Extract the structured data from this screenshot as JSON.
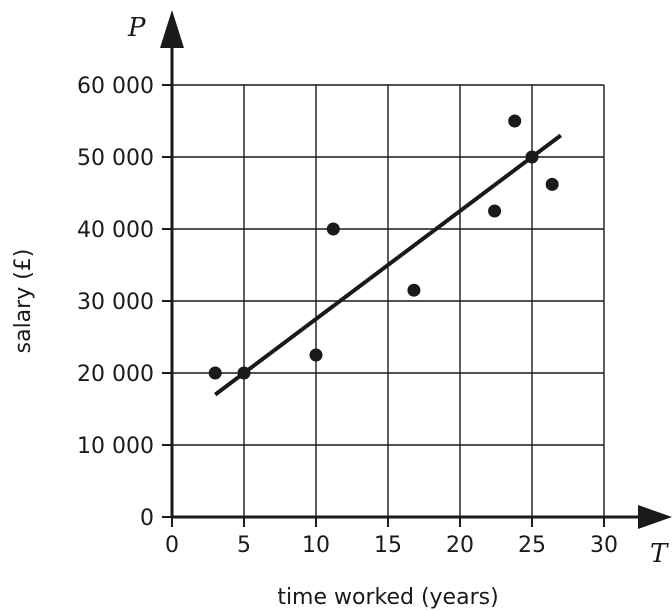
{
  "chart_data": {
    "type": "scatter",
    "title": "",
    "xlabel": "time worked (years)",
    "ylabel": "salary (£)",
    "x_axis_variable": "T",
    "y_axis_variable": "P",
    "xlim": [
      0,
      30
    ],
    "ylim": [
      0,
      60000
    ],
    "x_ticks": [
      0,
      5,
      10,
      15,
      20,
      25,
      30
    ],
    "y_ticks": [
      0,
      10000,
      20000,
      30000,
      40000,
      50000,
      60000
    ],
    "x_tick_labels": [
      "0",
      "5",
      "10",
      "15",
      "20",
      "25",
      "30"
    ],
    "y_tick_labels": [
      "0",
      "10 000",
      "20 000",
      "30 000",
      "40 000",
      "50 000",
      "60 000"
    ],
    "grid": true,
    "points": [
      {
        "x": 3,
        "y": 20000
      },
      {
        "x": 5,
        "y": 20000
      },
      {
        "x": 10,
        "y": 22500
      },
      {
        "x": 11.2,
        "y": 40000
      },
      {
        "x": 16.8,
        "y": 31500
      },
      {
        "x": 22.4,
        "y": 42500
      },
      {
        "x": 23.8,
        "y": 55000
      },
      {
        "x": 25,
        "y": 50000
      },
      {
        "x": 26.4,
        "y": 46200
      }
    ],
    "line_of_best_fit": {
      "x": [
        3,
        27
      ],
      "y": [
        17000,
        53000
      ]
    },
    "colors": {
      "ink": "#1a1a1a",
      "grid": "#1a1a1a",
      "background": "#ffffff"
    }
  }
}
